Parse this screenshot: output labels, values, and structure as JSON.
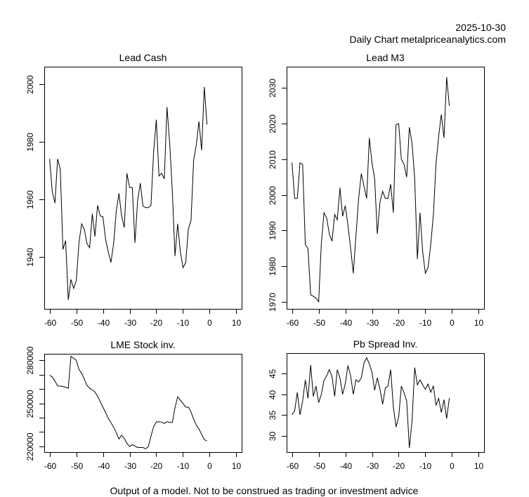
{
  "header": {
    "date": "2025-10-30",
    "subtitle": "Daily Chart metalpriceanalytics.com"
  },
  "footer": {
    "disclaimer": "Output of a model. Not to be construed as trading or investment advice"
  },
  "chart_data": [
    {
      "id": "lead-cash",
      "type": "line",
      "title": "Lead Cash",
      "xlabel": "",
      "ylabel": "",
      "xlim": [
        -62,
        12
      ],
      "ylim": [
        1922,
        2006
      ],
      "xticks": [
        -60,
        -50,
        -40,
        -30,
        -20,
        -10,
        0,
        10
      ],
      "xtick_labels": [
        "-60",
        "-50",
        "-40",
        "-30",
        "-20",
        "-10",
        "0",
        "10"
      ],
      "yticks": [
        1940,
        1960,
        1980,
        2000
      ],
      "ytick_labels": [
        "1940",
        "1960",
        "1980",
        "2000"
      ],
      "grid": false,
      "x": [
        -60,
        -59,
        -58,
        -57,
        -56,
        -55,
        -54,
        -53,
        -52,
        -51,
        -50,
        -49,
        -48,
        -47,
        -46,
        -45,
        -44,
        -43,
        -42,
        -41,
        -40,
        -39,
        -38,
        -37,
        -36,
        -35,
        -34,
        -33,
        -32,
        -31,
        -30,
        -29,
        -28,
        -27,
        -26,
        -25,
        -24,
        -23,
        -22,
        -21,
        -20,
        -19,
        -18,
        -17,
        -16,
        -15,
        -14,
        -13,
        -12,
        -11,
        -10,
        -9,
        -8,
        -7,
        -6,
        -5,
        -4,
        -3,
        -2,
        -1
      ],
      "values": [
        1974,
        1962.7,
        1958.7,
        1974,
        1970.4,
        1942.6,
        1945.7,
        1925.1,
        1932.2,
        1929.1,
        1931.8,
        1944.9,
        1951.5,
        1949.6,
        1944.6,
        1943.2,
        1955,
        1947.1,
        1957.9,
        1954.2,
        1954,
        1946.1,
        1941.8,
        1938.1,
        1944.6,
        1955.8,
        1962.1,
        1954.2,
        1950.2,
        1969,
        1964.1,
        1964.1,
        1944.9,
        1959.6,
        1965.6,
        1957.7,
        1957.1,
        1957.1,
        1957.9,
        1976.6,
        1987.6,
        1968.1,
        1969,
        1967.1,
        1992,
        1979.7,
        1962.7,
        1940.3,
        1951.5,
        1941.8,
        1936.3,
        1938,
        1949.6,
        1952.7,
        1973.5,
        1978.9,
        1987,
        1977,
        1999,
        1986
      ]
    },
    {
      "id": "lead-m3",
      "type": "line",
      "title": "Lead M3",
      "xlabel": "",
      "ylabel": "",
      "xlim": [
        -62,
        12
      ],
      "ylim": [
        1968,
        2036
      ],
      "xticks": [
        -60,
        -50,
        -40,
        -30,
        -20,
        -10,
        0,
        10
      ],
      "xtick_labels": [
        "-60",
        "-50",
        "-40",
        "-30",
        "-20",
        "-10",
        "0",
        "10"
      ],
      "yticks": [
        1970,
        1980,
        1990,
        2000,
        2010,
        2020,
        2030
      ],
      "ytick_labels": [
        "1970",
        "1980",
        "1990",
        "2000",
        "2010",
        "2020",
        "2030"
      ],
      "grid": false,
      "x": [
        -60,
        -59,
        -58,
        -57,
        -56,
        -55,
        -54,
        -53,
        -52,
        -51,
        -50,
        -49,
        -48,
        -47,
        -46,
        -45,
        -44,
        -43,
        -42,
        -41,
        -40,
        -39,
        -38,
        -37,
        -36,
        -35,
        -34,
        -33,
        -32,
        -31,
        -30,
        -29,
        -28,
        -27,
        -26,
        -25,
        -24,
        -23,
        -22,
        -21,
        -20,
        -19,
        -18,
        -17,
        -16,
        -15,
        -14,
        -13,
        -12,
        -11,
        -10,
        -9,
        -8,
        -7,
        -6,
        -5,
        -4,
        -3,
        -2,
        -1
      ],
      "values": [
        2009.1,
        1999,
        1999,
        2009,
        2008.6,
        1986,
        1985,
        1972,
        1971.5,
        1971,
        1970,
        1986.4,
        1995,
        1993.5,
        1989,
        1987,
        1994.5,
        1993,
        2002,
        1994,
        1997,
        1991.5,
        1985,
        1978,
        1988.6,
        1999,
        2006,
        2002.5,
        1999,
        2016,
        2009,
        2004.5,
        1989,
        1998,
        2001,
        1999,
        1999,
        2003,
        1995,
        2019.7,
        2020,
        2010,
        2008.6,
        2005,
        2019,
        2014.5,
        2004.6,
        1982,
        1995,
        1984,
        1978,
        1979.6,
        1986,
        1994.5,
        2008.6,
        2016.5,
        2022.6,
        2016,
        2033,
        2025
      ]
    },
    {
      "id": "lme-stock",
      "type": "line",
      "title": "LME Stock inv.",
      "xlabel": "",
      "ylabel": "",
      "xlim": [
        -62,
        12
      ],
      "ylim": [
        216000,
        284500
      ],
      "xticks": [
        -60,
        -50,
        -40,
        -30,
        -20,
        -10,
        0,
        10
      ],
      "xtick_labels": [
        "-60",
        "-50",
        "-40",
        "-30",
        "-20",
        "-10",
        "0",
        "10"
      ],
      "yticks": [
        220000,
        230000,
        240000,
        250000,
        260000,
        270000,
        280000
      ],
      "ytick_labels": [
        "220000",
        "",
        "",
        "250000",
        "",
        "",
        "280000"
      ],
      "grid": false,
      "x": [
        -60,
        -59,
        -58,
        -57,
        -56,
        -55,
        -54,
        -53,
        -52,
        -51,
        -50,
        -49,
        -48,
        -47,
        -46,
        -45,
        -44,
        -43,
        -42,
        -41,
        -40,
        -39,
        -38,
        -37,
        -36,
        -35,
        -34,
        -33,
        -32,
        -31,
        -30,
        -29,
        -28,
        -27,
        -26,
        -25,
        -24,
        -23,
        -22,
        -21,
        -20,
        -19,
        -18,
        -17,
        -16,
        -15,
        -14,
        -13,
        -12,
        -11,
        -10,
        -9,
        -8,
        -7,
        -6,
        -5,
        -4,
        -3,
        -2,
        -1
      ],
      "values": [
        269600,
        268400,
        265500,
        262100,
        262000,
        261700,
        261200,
        260500,
        282800,
        281300,
        280000,
        273700,
        270900,
        266800,
        262500,
        260500,
        259300,
        258000,
        254900,
        251100,
        247300,
        243600,
        239500,
        236700,
        233200,
        229600,
        225100,
        227800,
        225500,
        222100,
        219800,
        221200,
        220200,
        219200,
        219200,
        219200,
        218300,
        219800,
        227100,
        233700,
        237000,
        237200,
        236900,
        235900,
        237200,
        236700,
        236700,
        246900,
        254500,
        252200,
        249900,
        247300,
        247300,
        244000,
        239000,
        234900,
        232100,
        228400,
        224600,
        223800
      ]
    },
    {
      "id": "pb-spread",
      "type": "line",
      "title": "Pb Spread Inv.",
      "xlabel": "",
      "ylabel": "",
      "xlim": [
        -62,
        12
      ],
      "ylim": [
        26,
        50
      ],
      "xticks": [
        -60,
        -50,
        -40,
        -30,
        -20,
        -10,
        0,
        10
      ],
      "xtick_labels": [
        "-60",
        "-50",
        "-40",
        "-30",
        "-20",
        "-10",
        "0",
        "10"
      ],
      "yticks": [
        30,
        35,
        40,
        45
      ],
      "ytick_labels": [
        "30",
        "35",
        "40",
        "45"
      ],
      "grid": false,
      "x": [
        -60,
        -59,
        -58,
        -57,
        -56,
        -55,
        -54,
        -53,
        -52,
        -51,
        -50,
        -49,
        -48,
        -47,
        -46,
        -45,
        -44,
        -43,
        -42,
        -41,
        -40,
        -39,
        -38,
        -37,
        -36,
        -35,
        -34,
        -33,
        -32,
        -31,
        -30,
        -29,
        -28,
        -27,
        -26,
        -25,
        -24,
        -23,
        -22,
        -21,
        -20,
        -19,
        -18,
        -17,
        -16,
        -15,
        -14,
        -13,
        -12,
        -11,
        -10,
        -9,
        -8,
        -7,
        -6,
        -5,
        -4,
        -3,
        -2,
        -1
      ],
      "values": [
        35.0,
        36.0,
        40.5,
        35.0,
        38.4,
        43.5,
        39.0,
        47.1,
        39.5,
        42.0,
        38.0,
        40.0,
        43.4,
        44.5,
        46.0,
        44.3,
        39.5,
        46.0,
        44.0,
        40.0,
        42.6,
        47.0,
        44.5,
        40.0,
        43.5,
        43.0,
        44.0,
        47.6,
        48.9,
        47.4,
        45.4,
        41.0,
        44.0,
        41.2,
        37.6,
        41.6,
        42.0,
        46.0,
        37.0,
        32.1,
        34.5,
        42.0,
        40.4,
        38.4,
        27.0,
        33.5,
        46.5,
        42.3,
        43.5,
        42.3,
        41.2,
        42.5,
        40.5,
        42.0,
        37.3,
        39.0,
        35.6,
        38.7,
        34.1,
        39.1
      ]
    }
  ]
}
